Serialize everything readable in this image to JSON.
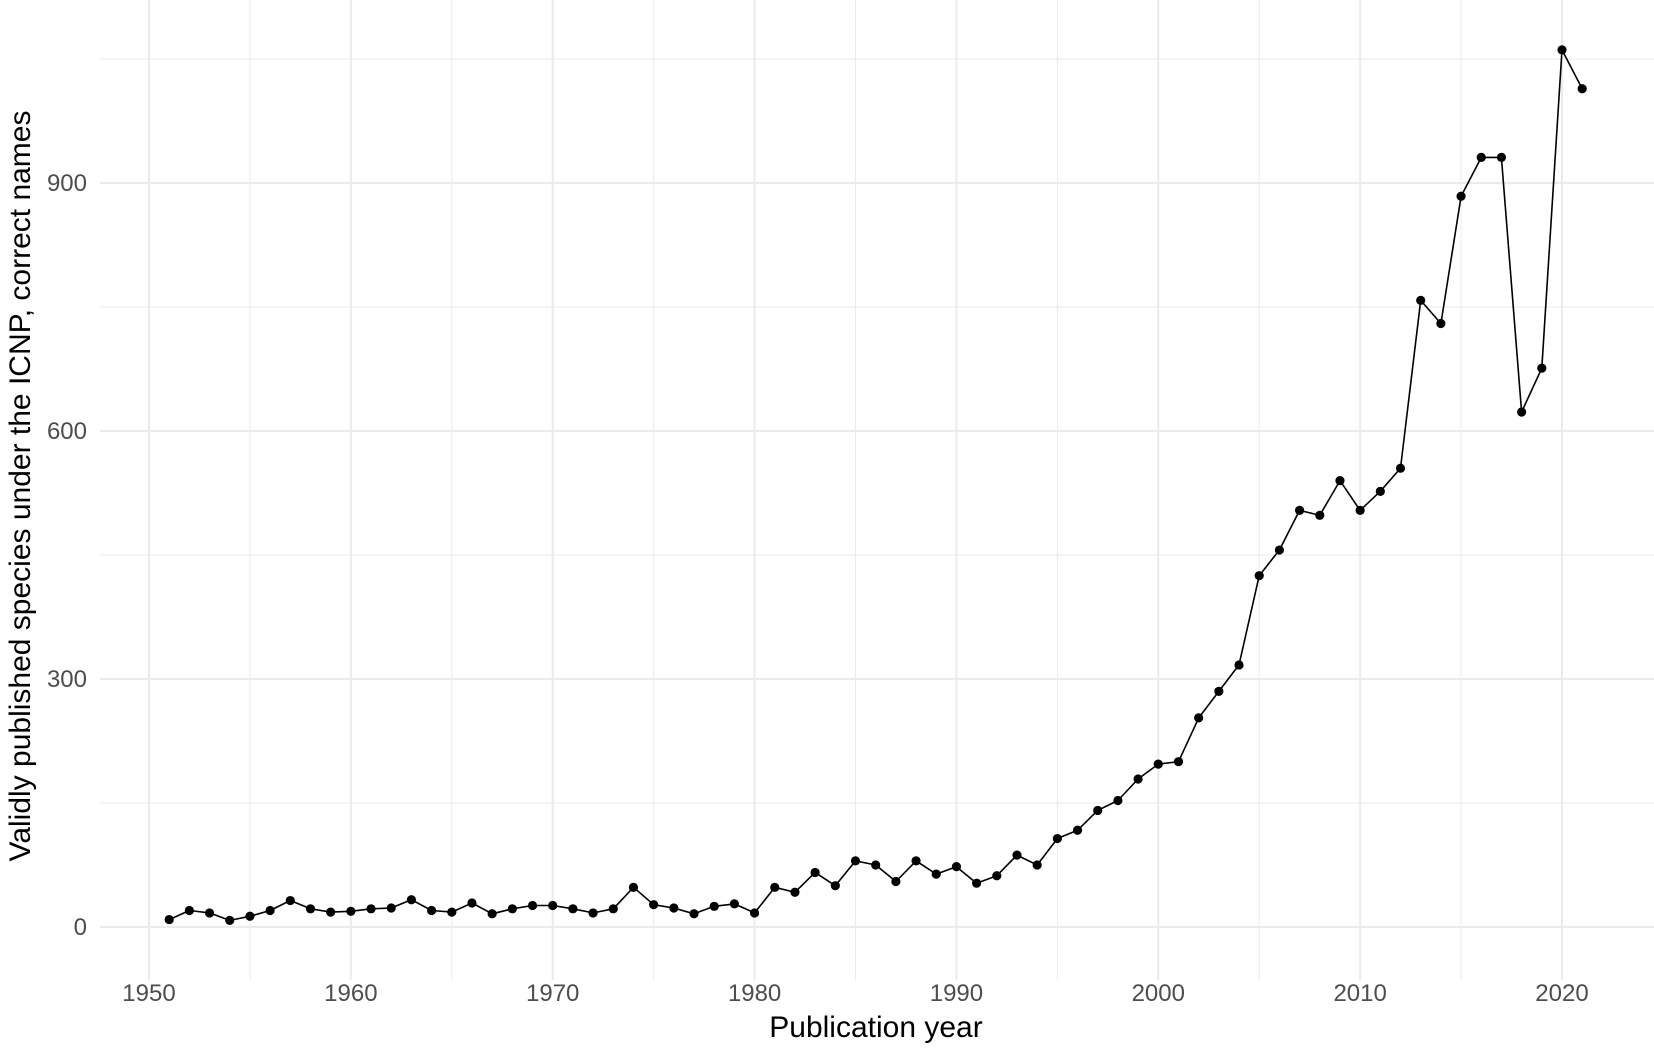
{
  "chart_data": {
    "type": "line",
    "title": "",
    "xlabel": "Publication year",
    "ylabel": "Validly published species under the ICNP, correct names",
    "xlim": [
      1945.4,
      1525.7
    ],
    "ylim": [
      -45,
      1085
    ],
    "x_ticks": [
      1950,
      1960,
      1970,
      1980,
      1990,
      2000,
      2010,
      2020
    ],
    "x_tick_labels": [
      "1950",
      "1960",
      "1970",
      "1980",
      "1990",
      "2000",
      "2010",
      "2020"
    ],
    "y_ticks": [
      0,
      300,
      600,
      900
    ],
    "y_tick_labels": [
      "0",
      "300",
      "600",
      "900"
    ],
    "grid": true,
    "legend": "none",
    "colors": {
      "line": "#000000",
      "points": "#000000",
      "grid": "#ebebeb",
      "tick_text": "#4d4d4d"
    },
    "series": [
      {
        "x": [
          1951,
          1952,
          1953,
          1954,
          1955,
          1956,
          1957,
          1958,
          1959,
          1960,
          1961,
          1962,
          1963,
          1964,
          1965,
          1966,
          1967,
          1968,
          1969,
          1970,
          1971,
          1972,
          1973,
          1974,
          1975,
          1976,
          1977,
          1978,
          1979,
          1980,
          1981,
          1982,
          1983,
          1984,
          1985,
          1986,
          1987,
          1988,
          1989,
          1990,
          1991,
          1992,
          1993,
          1994,
          1995,
          1996,
          1997,
          1998,
          1999,
          2000,
          2001,
          2002,
          2003,
          2004,
          2005,
          2006,
          2007,
          2008,
          2009,
          2010,
          2011,
          2012,
          2013,
          2014,
          2015,
          2016,
          2017,
          2018,
          2019,
          2020,
          2021
        ],
        "y": [
          9,
          20,
          17,
          8,
          13,
          20,
          32,
          22,
          18,
          19,
          22,
          23,
          33,
          20,
          18,
          29,
          16,
          22,
          26,
          26,
          22,
          17,
          22,
          48,
          27,
          23,
          16,
          25,
          28,
          17,
          48,
          42,
          66,
          50,
          80,
          75,
          55,
          80,
          64,
          73,
          53,
          62,
          87,
          75,
          107,
          117,
          141,
          153,
          179,
          197,
          200,
          253,
          285,
          317,
          425,
          456,
          504,
          498,
          540,
          504,
          527,
          555,
          758,
          730,
          884,
          931,
          931,
          623,
          676,
          1061,
          1014
        ]
      }
    ]
  }
}
